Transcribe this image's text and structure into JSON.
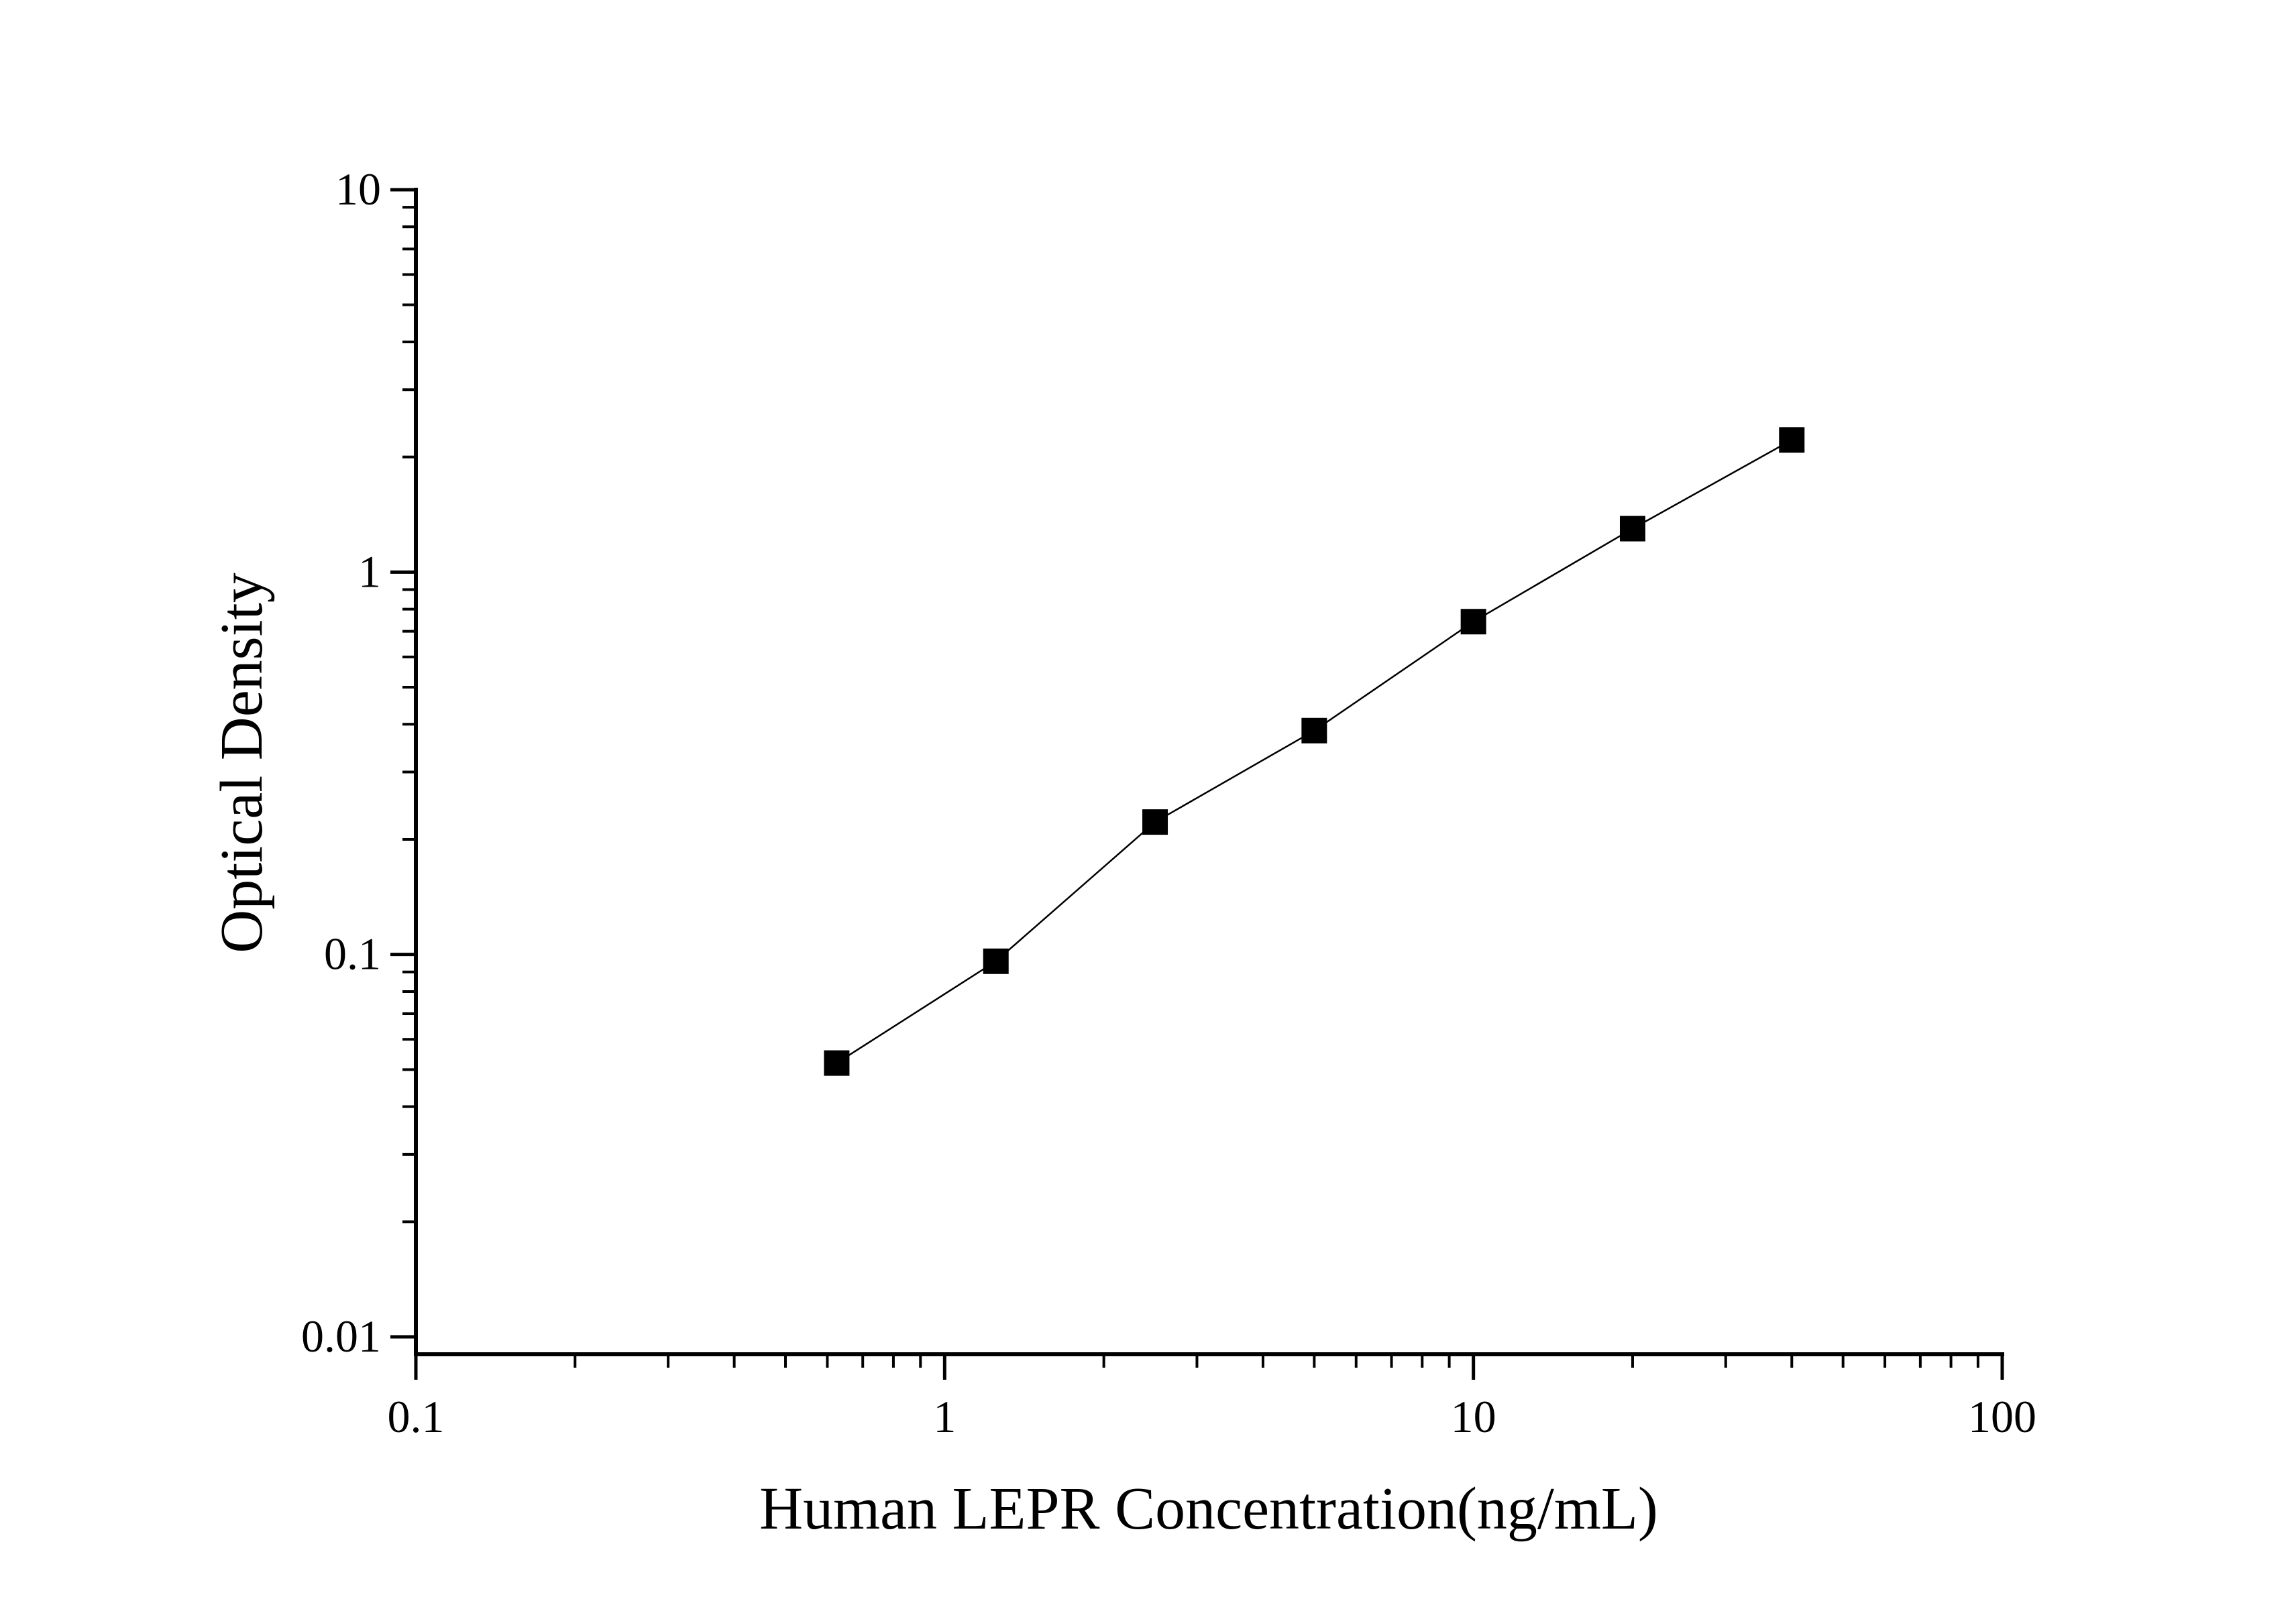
{
  "chart_data": {
    "type": "scatter",
    "title": "",
    "xlabel": "Human LEPR Concentration(ng/mL)",
    "ylabel": "Optical Density",
    "x_scale": "log",
    "y_scale": "log",
    "xlim": [
      0.1,
      100
    ],
    "ylim": [
      0.01,
      10
    ],
    "x_ticks": [
      0.1,
      1,
      10,
      100
    ],
    "x_tick_labels": [
      "0.1",
      "1",
      "10",
      "100"
    ],
    "y_ticks": [
      0.01,
      0.1,
      1,
      10
    ],
    "y_tick_labels": [
      "0.01",
      "0.1",
      "1",
      "10"
    ],
    "grid": false,
    "legend": "none",
    "marker": "filled-square",
    "line": "connected",
    "color": "#000000",
    "series": [
      {
        "x": [
          0.625,
          1.25,
          2.5,
          5,
          10,
          20,
          40
        ],
        "y": [
          0.052,
          0.096,
          0.222,
          0.385,
          0.742,
          1.299,
          2.216
        ]
      }
    ]
  }
}
